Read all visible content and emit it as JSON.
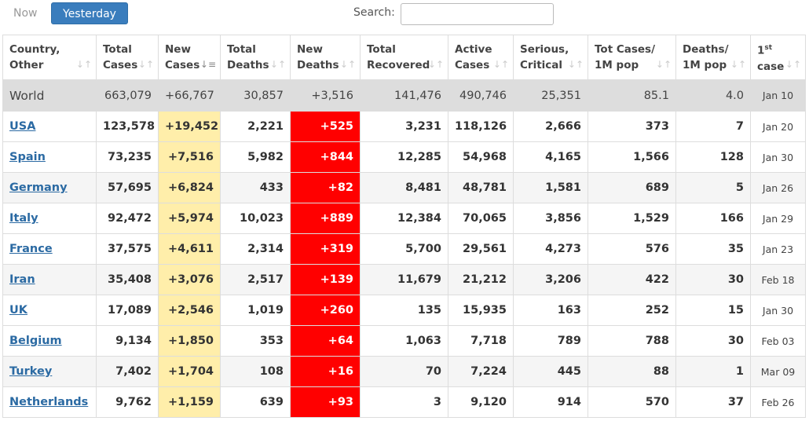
{
  "tabs": {
    "now": "Now",
    "yesterday": "Yesterday"
  },
  "search": {
    "label": "Search:",
    "value": ""
  },
  "headers": {
    "country": [
      "Country,",
      "Other"
    ],
    "total_cases": [
      "Total",
      "Cases"
    ],
    "new_cases": [
      "New",
      "Cases"
    ],
    "total_deaths": [
      "Total",
      "Deaths"
    ],
    "new_deaths": [
      "New",
      "Deaths"
    ],
    "total_recovered": [
      "Total",
      "Recovered"
    ],
    "active_cases": [
      "Active",
      "Cases"
    ],
    "serious": [
      "Serious,",
      "Critical"
    ],
    "cases_per_m": [
      "Tot Cases/",
      "1M pop"
    ],
    "deaths_per_m": [
      "Deaths/",
      "1M pop"
    ],
    "first_case": [
      "1",
      "st",
      "case"
    ]
  },
  "sort_icons": {
    "default": "↓↑",
    "active": "↓≡"
  },
  "rows": [
    {
      "country": "World",
      "total_cases": "663,079",
      "new_cases": "+66,767",
      "total_deaths": "30,857",
      "new_deaths": "+3,516",
      "total_recovered": "141,476",
      "active_cases": "490,746",
      "serious": "25,351",
      "cases_per_m": "85.1",
      "deaths_per_m": "4.0",
      "first_case": "Jan 10"
    },
    {
      "country": "USA",
      "total_cases": "123,578",
      "new_cases": "+19,452",
      "total_deaths": "2,221",
      "new_deaths": "+525",
      "total_recovered": "3,231",
      "active_cases": "118,126",
      "serious": "2,666",
      "cases_per_m": "373",
      "deaths_per_m": "7",
      "first_case": "Jan 20"
    },
    {
      "country": "Spain",
      "total_cases": "73,235",
      "new_cases": "+7,516",
      "total_deaths": "5,982",
      "new_deaths": "+844",
      "total_recovered": "12,285",
      "active_cases": "54,968",
      "serious": "4,165",
      "cases_per_m": "1,566",
      "deaths_per_m": "128",
      "first_case": "Jan 30"
    },
    {
      "country": "Germany",
      "total_cases": "57,695",
      "new_cases": "+6,824",
      "total_deaths": "433",
      "new_deaths": "+82",
      "total_recovered": "8,481",
      "active_cases": "48,781",
      "serious": "1,581",
      "cases_per_m": "689",
      "deaths_per_m": "5",
      "first_case": "Jan 26"
    },
    {
      "country": "Italy",
      "total_cases": "92,472",
      "new_cases": "+5,974",
      "total_deaths": "10,023",
      "new_deaths": "+889",
      "total_recovered": "12,384",
      "active_cases": "70,065",
      "serious": "3,856",
      "cases_per_m": "1,529",
      "deaths_per_m": "166",
      "first_case": "Jan 29"
    },
    {
      "country": "France",
      "total_cases": "37,575",
      "new_cases": "+4,611",
      "total_deaths": "2,314",
      "new_deaths": "+319",
      "total_recovered": "5,700",
      "active_cases": "29,561",
      "serious": "4,273",
      "cases_per_m": "576",
      "deaths_per_m": "35",
      "first_case": "Jan 23"
    },
    {
      "country": "Iran",
      "total_cases": "35,408",
      "new_cases": "+3,076",
      "total_deaths": "2,517",
      "new_deaths": "+139",
      "total_recovered": "11,679",
      "active_cases": "21,212",
      "serious": "3,206",
      "cases_per_m": "422",
      "deaths_per_m": "30",
      "first_case": "Feb 18"
    },
    {
      "country": "UK",
      "total_cases": "17,089",
      "new_cases": "+2,546",
      "total_deaths": "1,019",
      "new_deaths": "+260",
      "total_recovered": "135",
      "active_cases": "15,935",
      "serious": "163",
      "cases_per_m": "252",
      "deaths_per_m": "15",
      "first_case": "Jan 30"
    },
    {
      "country": "Belgium",
      "total_cases": "9,134",
      "new_cases": "+1,850",
      "total_deaths": "353",
      "new_deaths": "+64",
      "total_recovered": "1,063",
      "active_cases": "7,718",
      "serious": "789",
      "cases_per_m": "788",
      "deaths_per_m": "30",
      "first_case": "Feb 03"
    },
    {
      "country": "Turkey",
      "total_cases": "7,402",
      "new_cases": "+1,704",
      "total_deaths": "108",
      "new_deaths": "+16",
      "total_recovered": "70",
      "active_cases": "7,224",
      "serious": "445",
      "cases_per_m": "88",
      "deaths_per_m": "1",
      "first_case": "Mar 09"
    },
    {
      "country": "Netherlands",
      "total_cases": "9,762",
      "new_cases": "+1,159",
      "total_deaths": "639",
      "new_deaths": "+93",
      "total_recovered": "3",
      "active_cases": "9,120",
      "serious": "914",
      "cases_per_m": "570",
      "deaths_per_m": "37",
      "first_case": "Feb 26"
    }
  ],
  "colors": {
    "accent": "#3a7dbd",
    "new_cases_bg": "#ffeeaa",
    "new_deaths_bg": "#ff0000",
    "world_row_bg": "#dddddd",
    "link": "#2b6aa3"
  }
}
